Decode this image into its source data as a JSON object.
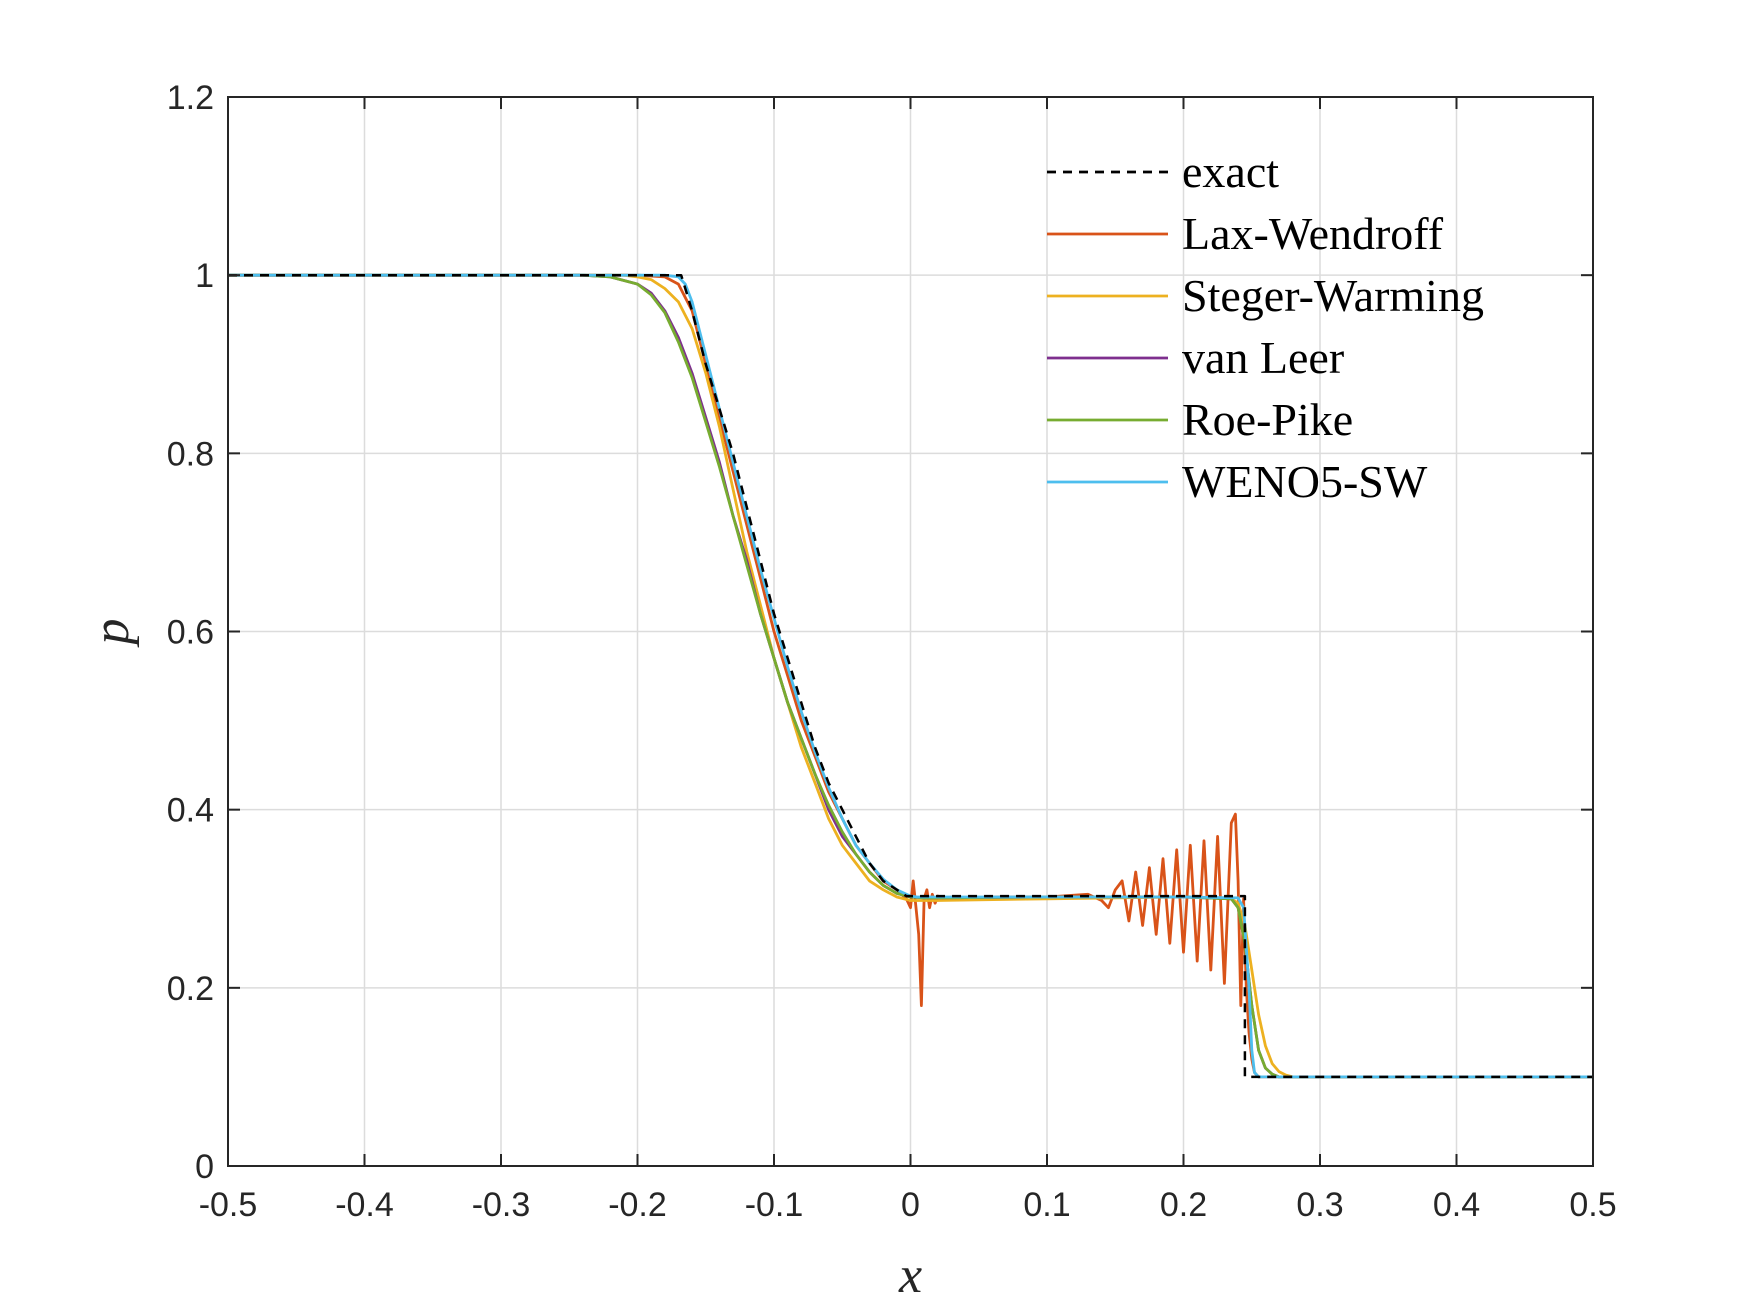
{
  "chart_data": {
    "type": "line",
    "title": "",
    "xlabel": "x",
    "ylabel": "p",
    "xlim": [
      -0.5,
      0.5
    ],
    "ylim": [
      0,
      1.2
    ],
    "xticks": [
      "-0.5",
      "-0.4",
      "-0.3",
      "-0.2",
      "-0.1",
      "0",
      "0.1",
      "0.2",
      "0.3",
      "0.4",
      "0.5"
    ],
    "yticks": [
      "0",
      "0.2",
      "0.4",
      "0.6",
      "0.8",
      "1",
      "1.2"
    ],
    "grid": true,
    "legend_position": "top-right",
    "series": [
      {
        "name": "exact",
        "color": "#000000",
        "dashed": true,
        "x": [
          -0.5,
          -0.168,
          -0.16,
          -0.15,
          -0.14,
          -0.13,
          -0.12,
          -0.11,
          -0.1,
          -0.09,
          -0.08,
          -0.07,
          -0.06,
          -0.05,
          -0.04,
          -0.03,
          -0.02,
          -0.01,
          -0.003,
          0.245,
          0.245,
          0.5
        ],
        "y": [
          1.0,
          1.0,
          0.96,
          0.9,
          0.85,
          0.8,
          0.74,
          0.68,
          0.62,
          0.57,
          0.52,
          0.47,
          0.43,
          0.4,
          0.37,
          0.34,
          0.32,
          0.31,
          0.303,
          0.303,
          0.1,
          0.1
        ]
      },
      {
        "name": "Lax-Wendroff",
        "color": "#D95319",
        "dashed": false,
        "x": [
          -0.5,
          -0.2,
          -0.18,
          -0.17,
          -0.16,
          -0.15,
          -0.14,
          -0.13,
          -0.12,
          -0.11,
          -0.1,
          -0.09,
          -0.08,
          -0.07,
          -0.06,
          -0.05,
          -0.04,
          -0.03,
          -0.02,
          -0.01,
          -0.003,
          0.0,
          0.002,
          0.004,
          0.006,
          0.008,
          0.01,
          0.012,
          0.014,
          0.016,
          0.018,
          0.02,
          0.025,
          0.03,
          0.04,
          0.06,
          0.1,
          0.13,
          0.14,
          0.145,
          0.15,
          0.155,
          0.16,
          0.165,
          0.17,
          0.175,
          0.18,
          0.185,
          0.19,
          0.195,
          0.2,
          0.205,
          0.21,
          0.215,
          0.22,
          0.225,
          0.23,
          0.235,
          0.238,
          0.24,
          0.242,
          0.244,
          0.246,
          0.248,
          0.25,
          0.252,
          0.255,
          0.26,
          0.5
        ],
        "y": [
          1.0,
          1.0,
          0.998,
          0.99,
          0.96,
          0.9,
          0.84,
          0.78,
          0.72,
          0.66,
          0.6,
          0.55,
          0.5,
          0.46,
          0.42,
          0.39,
          0.36,
          0.34,
          0.32,
          0.31,
          0.3,
          0.29,
          0.32,
          0.29,
          0.26,
          0.18,
          0.3,
          0.31,
          0.29,
          0.305,
          0.295,
          0.303,
          0.3,
          0.302,
          0.301,
          0.302,
          0.302,
          0.305,
          0.298,
          0.29,
          0.31,
          0.32,
          0.275,
          0.33,
          0.27,
          0.335,
          0.26,
          0.345,
          0.25,
          0.355,
          0.24,
          0.36,
          0.23,
          0.365,
          0.22,
          0.37,
          0.205,
          0.385,
          0.395,
          0.32,
          0.18,
          0.3,
          0.2,
          0.15,
          0.12,
          0.105,
          0.1,
          0.1,
          0.1
        ]
      },
      {
        "name": "Steger-Warming",
        "color": "#EDB120",
        "dashed": false,
        "x": [
          -0.5,
          -0.21,
          -0.2,
          -0.19,
          -0.18,
          -0.17,
          -0.16,
          -0.15,
          -0.14,
          -0.13,
          -0.12,
          -0.11,
          -0.1,
          -0.09,
          -0.08,
          -0.07,
          -0.06,
          -0.05,
          -0.04,
          -0.03,
          -0.02,
          -0.01,
          0.0,
          0.01,
          0.02,
          0.1,
          0.2,
          0.235,
          0.24,
          0.245,
          0.25,
          0.255,
          0.26,
          0.265,
          0.27,
          0.275,
          0.28,
          0.5
        ],
        "y": [
          1.0,
          1.0,
          0.998,
          0.995,
          0.985,
          0.97,
          0.94,
          0.89,
          0.83,
          0.76,
          0.69,
          0.63,
          0.57,
          0.52,
          0.47,
          0.43,
          0.39,
          0.36,
          0.34,
          0.32,
          0.31,
          0.302,
          0.298,
          0.298,
          0.298,
          0.3,
          0.302,
          0.3,
          0.295,
          0.27,
          0.22,
          0.17,
          0.135,
          0.115,
          0.106,
          0.102,
          0.1,
          0.1
        ]
      },
      {
        "name": "van Leer",
        "color": "#7E2F8E",
        "dashed": false,
        "x": [
          -0.5,
          -0.24,
          -0.22,
          -0.2,
          -0.19,
          -0.18,
          -0.17,
          -0.16,
          -0.15,
          -0.14,
          -0.13,
          -0.12,
          -0.11,
          -0.1,
          -0.09,
          -0.08,
          -0.07,
          -0.06,
          -0.05,
          -0.04,
          -0.03,
          -0.02,
          -0.01,
          0.0,
          0.01,
          0.02,
          0.1,
          0.2,
          0.235,
          0.24,
          0.245,
          0.25,
          0.255,
          0.26,
          0.265,
          0.27,
          0.5
        ],
        "y": [
          1.0,
          1.0,
          0.998,
          0.99,
          0.98,
          0.96,
          0.93,
          0.89,
          0.84,
          0.79,
          0.73,
          0.68,
          0.62,
          0.57,
          0.52,
          0.48,
          0.44,
          0.4,
          0.37,
          0.35,
          0.33,
          0.315,
          0.306,
          0.302,
          0.301,
          0.301,
          0.302,
          0.302,
          0.3,
          0.29,
          0.25,
          0.18,
          0.13,
          0.11,
          0.103,
          0.1,
          0.1
        ]
      },
      {
        "name": "Roe-Pike",
        "color": "#77AC30",
        "dashed": false,
        "x": [
          -0.5,
          -0.24,
          -0.22,
          -0.2,
          -0.19,
          -0.18,
          -0.17,
          -0.16,
          -0.15,
          -0.14,
          -0.13,
          -0.12,
          -0.11,
          -0.1,
          -0.09,
          -0.08,
          -0.07,
          -0.06,
          -0.05,
          -0.04,
          -0.03,
          -0.02,
          -0.01,
          0.0,
          0.01,
          0.02,
          0.1,
          0.2,
          0.235,
          0.24,
          0.245,
          0.25,
          0.255,
          0.26,
          0.265,
          0.27,
          0.5
        ],
        "y": [
          1.0,
          1.0,
          0.998,
          0.99,
          0.978,
          0.958,
          0.925,
          0.885,
          0.835,
          0.785,
          0.73,
          0.675,
          0.62,
          0.57,
          0.52,
          0.48,
          0.44,
          0.405,
          0.375,
          0.35,
          0.33,
          0.315,
          0.306,
          0.302,
          0.301,
          0.301,
          0.302,
          0.302,
          0.3,
          0.29,
          0.25,
          0.18,
          0.13,
          0.11,
          0.103,
          0.1,
          0.1
        ]
      },
      {
        "name": "WENO5-SW",
        "color": "#4DBEEE",
        "dashed": false,
        "x": [
          -0.5,
          -0.18,
          -0.17,
          -0.165,
          -0.16,
          -0.15,
          -0.14,
          -0.13,
          -0.12,
          -0.11,
          -0.1,
          -0.09,
          -0.08,
          -0.07,
          -0.06,
          -0.05,
          -0.04,
          -0.03,
          -0.02,
          -0.01,
          0.0,
          0.005,
          0.01,
          0.1,
          0.2,
          0.24,
          0.244,
          0.248,
          0.25,
          0.252,
          0.255,
          0.26,
          0.5
        ],
        "y": [
          1.0,
          1.0,
          0.998,
          0.99,
          0.97,
          0.91,
          0.85,
          0.79,
          0.73,
          0.67,
          0.615,
          0.56,
          0.51,
          0.465,
          0.425,
          0.39,
          0.36,
          0.34,
          0.322,
          0.31,
          0.303,
          0.302,
          0.302,
          0.302,
          0.302,
          0.301,
          0.29,
          0.2,
          0.13,
          0.105,
          0.1,
          0.1,
          0.1
        ]
      }
    ]
  }
}
